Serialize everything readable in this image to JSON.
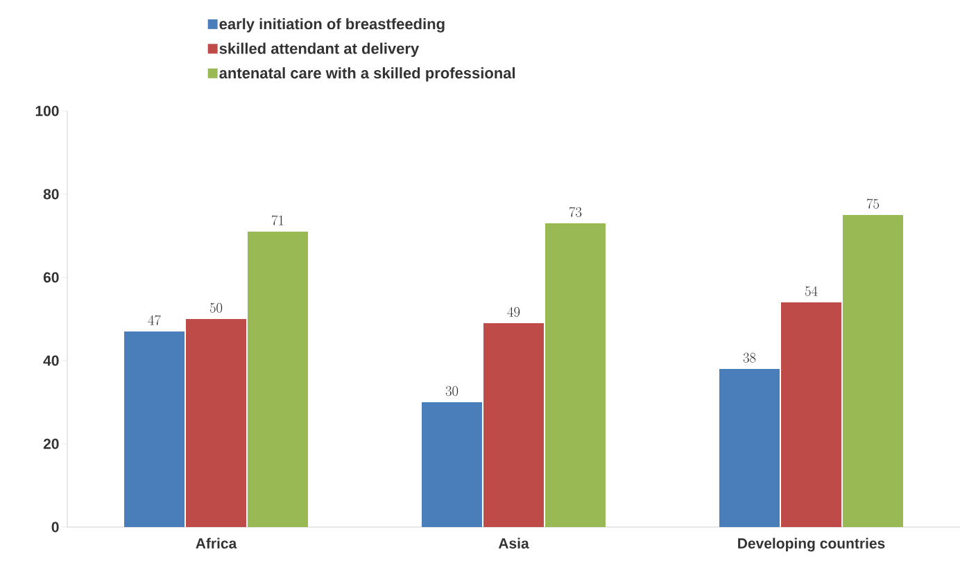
{
  "chart_data": {
    "type": "bar",
    "categories": [
      "Africa",
      "Asia",
      "Developing countries"
    ],
    "series": [
      {
        "name": "early initiation of breastfeeding",
        "color": "#4a7ebb",
        "values": [
          47,
          30,
          38
        ]
      },
      {
        "name": "skilled attendant at delivery",
        "color": "#be4b48",
        "values": [
          50,
          49,
          54
        ]
      },
      {
        "name": "antenatal care with a skilled professional",
        "color": "#98b954",
        "values": [
          71,
          73,
          75
        ]
      }
    ],
    "ylim": [
      0,
      100
    ],
    "yticks": [
      0,
      20,
      40,
      60,
      80,
      100
    ],
    "data_labels": true,
    "legend": "top",
    "grid": false
  }
}
